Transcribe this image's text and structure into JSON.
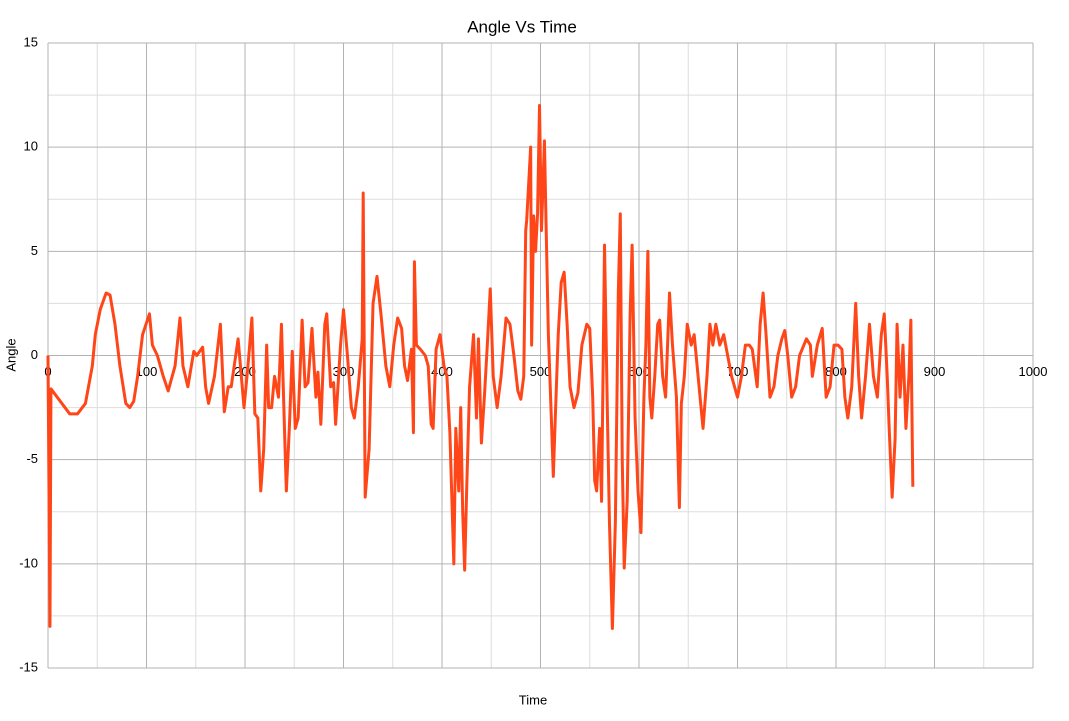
{
  "chart_data": {
    "type": "line",
    "title": "Angle Vs Time",
    "x_label": "Time",
    "y_label": "Angle",
    "color": "#ff4619",
    "grid": true,
    "xlim": [
      0,
      1000
    ],
    "xticks": [
      0,
      100,
      200,
      300,
      400,
      500,
      600,
      700,
      800,
      900,
      1000
    ],
    "ylim": [
      -15,
      15
    ],
    "yticks": [
      -15,
      -10,
      -5,
      0,
      5,
      10,
      15
    ],
    "xminor": [
      50,
      150,
      250,
      350,
      450,
      550,
      650,
      750,
      850,
      950
    ],
    "yminor": [
      -12.5,
      -7.5,
      -2.5,
      2.5,
      7.5,
      12.5
    ],
    "x": [
      0,
      2,
      3,
      22,
      30,
      38,
      45,
      48,
      53,
      59,
      63,
      68,
      73,
      79,
      83,
      87,
      91,
      96,
      103,
      106,
      111,
      117,
      122,
      129,
      134,
      137,
      142,
      148,
      151,
      157,
      160,
      163,
      169,
      175,
      179,
      183,
      186,
      193,
      199,
      203,
      207,
      210,
      213,
      216,
      219,
      222,
      224,
      227,
      230,
      234,
      237,
      241,
      242,
      245,
      248,
      251,
      254,
      258,
      261,
      264,
      268,
      272,
      274,
      277,
      281,
      283,
      287,
      290,
      292,
      297,
      300,
      304,
      308,
      311,
      315,
      319,
      320,
      322,
      326,
      330,
      334,
      338,
      343,
      347,
      351,
      355,
      359,
      362,
      365,
      369,
      371,
      372,
      374,
      378,
      383,
      386,
      389,
      391,
      394,
      398,
      402,
      405,
      408,
      412,
      414,
      417,
      419,
      421,
      423,
      425,
      428,
      432,
      435,
      437,
      440,
      443,
      446,
      449,
      452,
      456,
      460,
      465,
      469,
      473,
      477,
      480,
      483,
      485,
      486,
      490,
      491,
      493,
      495,
      497,
      499,
      501,
      504,
      506,
      508,
      511,
      513,
      515,
      518,
      521,
      524,
      527,
      530,
      534,
      538,
      542,
      547,
      550,
      553,
      555,
      557,
      560,
      562,
      565,
      568,
      570,
      573,
      576,
      579,
      581,
      583,
      585,
      588,
      591,
      593,
      596,
      599,
      602,
      605,
      607,
      609,
      611,
      613,
      616,
      619,
      621,
      624,
      627,
      631,
      634,
      638,
      641,
      643,
      646,
      649,
      653,
      656,
      659,
      662,
      665,
      669,
      672,
      675,
      678,
      682,
      686,
      690,
      694,
      700,
      704,
      708,
      712,
      715,
      720,
      723,
      726,
      729,
      733,
      737,
      741,
      745,
      748,
      751,
      755,
      759,
      763,
      770,
      774,
      776,
      781,
      786,
      790,
      794,
      798,
      802,
      806,
      809,
      812,
      816,
      820,
      823,
      826,
      830,
      834,
      838,
      842,
      846,
      849,
      852,
      854,
      857,
      860,
      862,
      865,
      868,
      871,
      874,
      876,
      878
    ],
    "values": [
      0,
      -13,
      -1.6,
      -2.8,
      -2.8,
      -2.3,
      -0.5,
      1,
      2.2,
      3,
      2.9,
      1.5,
      -0.5,
      -2.3,
      -2.5,
      -2.2,
      -1,
      1,
      2,
      0.5,
      0,
      -1,
      -1.7,
      -0.5,
      1.8,
      -0.5,
      -1.5,
      0.2,
      0,
      0.4,
      -1.5,
      -2.3,
      -1,
      1.5,
      -2.7,
      -1.5,
      -1.5,
      0.8,
      -2.5,
      -0.5,
      1.8,
      -2.8,
      -3,
      -6.5,
      -4.5,
      0.5,
      -2.5,
      -2.5,
      -1,
      -2,
      1.5,
      -5,
      -6.5,
      -3.5,
      0.2,
      -3.5,
      -3,
      1.7,
      -1.5,
      -1.3,
      1.3,
      -2,
      -0.8,
      -3.3,
      1.5,
      2,
      -1.5,
      -1.3,
      -3.3,
      0.5,
      2.2,
      0,
      -2.5,
      -3,
      -1.5,
      0.8,
      7.8,
      -6.8,
      -4.5,
      2.5,
      3.8,
      2,
      -0.5,
      -1.5,
      0.5,
      1.8,
      1.3,
      -0.5,
      -1.2,
      0.3,
      -3.7,
      4.5,
      0.5,
      0.3,
      0,
      -0.5,
      -3.3,
      -3.5,
      0.3,
      1,
      -0.5,
      -1,
      -3.7,
      -10,
      -3.5,
      -6.5,
      -2.5,
      -7.5,
      -10.3,
      -6.5,
      -1.5,
      1,
      -3,
      0.8,
      -4.2,
      -2,
      0.5,
      3.2,
      -1,
      -2.5,
      -1,
      1.8,
      1.5,
      0,
      -1.7,
      -2.1,
      -1,
      6,
      6.5,
      10,
      0.5,
      6.7,
      5,
      6.8,
      12,
      6,
      10.3,
      5.5,
      1,
      -3,
      -5.8,
      -3,
      1,
      3.5,
      4,
      1.5,
      -1.5,
      -2.5,
      -1.8,
      0.5,
      1.5,
      1.3,
      -2,
      -6,
      -6.5,
      -3.5,
      -7,
      5.3,
      -3,
      -8,
      -13.1,
      -8,
      3,
      6.8,
      -5,
      -10.2,
      -7,
      2,
      5.3,
      -3,
      -6.5,
      -8.5,
      -2,
      0.5,
      5,
      -2,
      -3,
      -1,
      1.5,
      1.7,
      -1,
      -2,
      3,
      0.5,
      -2,
      -7.3,
      -2.3,
      -1,
      1.5,
      0.5,
      1,
      -0.5,
      -2,
      -3.5,
      -1,
      1.5,
      0.5,
      1.5,
      0.5,
      1,
      0,
      -1,
      -2,
      -1,
      0.5,
      0.5,
      0.3,
      -1.5,
      1.5,
      3,
      1,
      -2,
      -1.5,
      0,
      0.8,
      1.2,
      0,
      -2,
      -1.5,
      0,
      0.8,
      0.5,
      -1,
      0.5,
      1.3,
      -2,
      -1.5,
      0.5,
      0.5,
      0.3,
      -2,
      -3,
      -1.5,
      2.5,
      -1,
      -3,
      -1,
      1.5,
      -1,
      -2,
      1,
      2,
      -1,
      -3.5,
      -6.8,
      -4,
      1.5,
      -2,
      0.5,
      -3.5,
      -1,
      1.7,
      -6.3
    ]
  }
}
